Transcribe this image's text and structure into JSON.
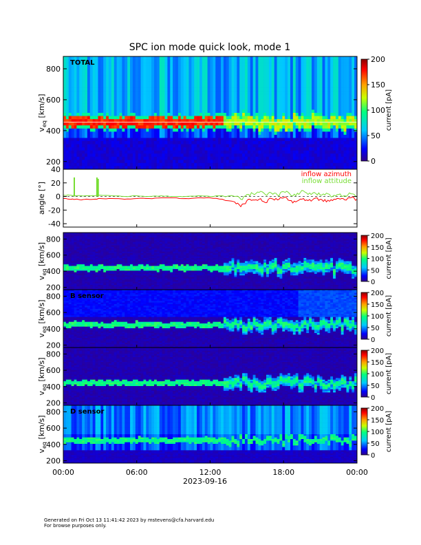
{
  "title": "SPC ion mode quick look, mode 1",
  "footer": {
    "line1": "Generated on Fri Oct 13 11:41:42 2023 by mstevens@cfa.harvard.edu",
    "line2": "For browse purposes only."
  },
  "chart_data": [
    {
      "type": "heatmap",
      "label": "TOTAL",
      "ylabel": "v_eq [km/s]",
      "ylim": [
        150,
        880
      ],
      "yticks": [
        200,
        400,
        600,
        800
      ],
      "colorbar": {
        "label": "current [pA]",
        "range": [
          0,
          200
        ],
        "ticks": [
          0,
          50,
          100,
          150,
          200
        ]
      },
      "band_center": 455,
      "band_level": "high"
    },
    {
      "type": "line",
      "ylabel": "angle [°]",
      "ylim": [
        -45,
        40
      ],
      "yticks": [
        -40,
        -20,
        0,
        20,
        40
      ],
      "series": [
        {
          "name": "inflow azimuth",
          "color": "#ff0000"
        },
        {
          "name": "inflow attitude",
          "color": "#77dd33"
        }
      ],
      "x_hours": [
        0,
        0.5,
        1.0,
        1.5,
        2.0,
        2.5,
        3.0,
        4.0,
        5.0,
        6.0,
        7.0,
        8.0,
        9.0,
        10.0,
        11.0,
        12.0,
        13.0,
        14.0,
        14.5,
        15.0,
        15.5,
        16.0,
        16.5,
        17.0,
        17.5,
        18.0,
        18.5,
        19.0,
        19.5,
        20.0,
        20.5,
        21.0,
        21.5,
        22.0,
        22.5,
        23.0,
        23.5,
        24.0
      ],
      "azimuth": [
        -3,
        -4,
        -4,
        -5,
        -4,
        -4,
        -3,
        -3,
        -4,
        -3,
        -3,
        -2,
        -2,
        -3,
        -2,
        -2,
        -4,
        -8,
        -15,
        -6,
        -5,
        -4,
        -9,
        -3,
        -5,
        -2,
        -6,
        -8,
        -4,
        -6,
        -3,
        -4,
        -8,
        -6,
        -3,
        -5,
        -2,
        -4
      ],
      "attitude": [
        2,
        2,
        1,
        1,
        1,
        1,
        2,
        1,
        0,
        1,
        0,
        1,
        0,
        0,
        1,
        0,
        1,
        0,
        -4,
        3,
        4,
        6,
        3,
        5,
        2,
        7,
        4,
        1,
        9,
        3,
        6,
        2,
        5,
        0,
        3,
        1,
        4,
        0
      ],
      "spikes": [
        {
          "x_hours": 0.9,
          "value": 28
        },
        {
          "x_hours": 2.75,
          "value": 28
        },
        {
          "x_hours": 2.85,
          "value": 26
        }
      ]
    },
    {
      "type": "heatmap",
      "label": "",
      "ylabel": "v_eq [km/s]",
      "ylim": [
        170,
        880
      ],
      "yticks": [
        200,
        400,
        600,
        800
      ],
      "colorbar": {
        "label": "current [pA]",
        "range": [
          0,
          200
        ],
        "ticks": [
          0,
          50,
          100,
          150,
          200
        ]
      },
      "band_center": 440,
      "band_level": "mid"
    },
    {
      "type": "heatmap",
      "label": "B sensor",
      "ylabel": "v_eq [km/s]",
      "ylim": [
        170,
        880
      ],
      "yticks": [
        200,
        400,
        600,
        800
      ],
      "colorbar": {
        "label": "current [pA]",
        "range": [
          0,
          200
        ],
        "ticks": [
          0,
          50,
          100,
          150,
          200
        ]
      },
      "band_center": 450,
      "band_level": "mid"
    },
    {
      "type": "heatmap",
      "label": "",
      "ylabel": "v_eq [km/s]",
      "ylim": [
        170,
        880
      ],
      "yticks": [
        200,
        400,
        600,
        800
      ],
      "colorbar": {
        "label": "current [pA]",
        "range": [
          0,
          200
        ],
        "ticks": [
          0,
          50,
          100,
          150,
          200
        ]
      },
      "band_center": 445,
      "band_level": "mid"
    },
    {
      "type": "heatmap",
      "label": "D sensor",
      "ylabel": "v_eq [km/s]",
      "ylim": [
        170,
        880
      ],
      "yticks": [
        200,
        400,
        600,
        800
      ],
      "colorbar": {
        "label": "current [pA]",
        "range": [
          0,
          200
        ],
        "ticks": [
          0,
          50,
          100,
          150,
          200
        ]
      },
      "band_center": 450,
      "band_level": "mid"
    }
  ],
  "x_axis": {
    "range_hours": [
      0,
      24
    ],
    "tick_labels": [
      "00:00",
      "06:00",
      "12:00",
      "18:00",
      "00:00"
    ],
    "date_label": "2023-09-16"
  }
}
